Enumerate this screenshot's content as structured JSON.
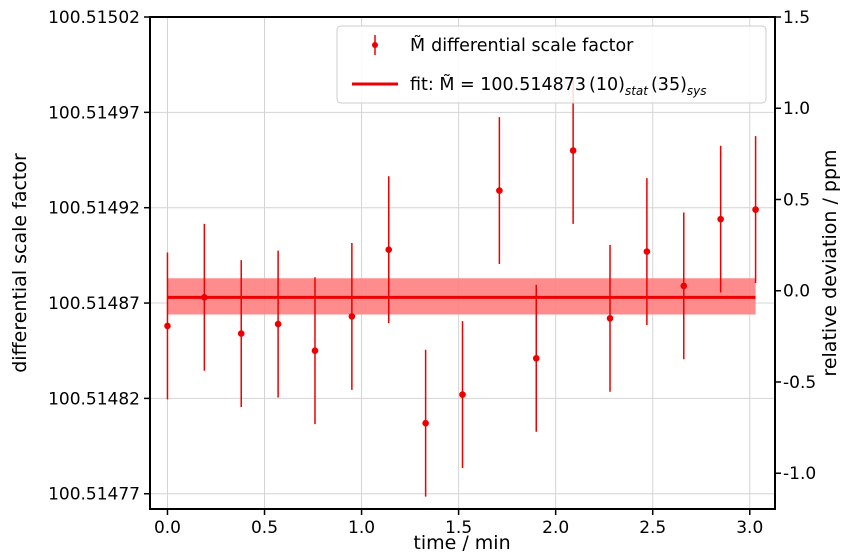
{
  "chart_data": {
    "type": "scatter",
    "xlabel": "time / min",
    "ylabel": "differential scale factor",
    "ylabel_right": "relative deviation / ppm",
    "xlim": [
      -0.09,
      3.13
    ],
    "ylim": [
      100.514762,
      100.51502
    ],
    "ylim_right": [
      -1.196,
      1.5
    ],
    "x_ticks": [
      0.0,
      0.5,
      1.0,
      1.5,
      2.0,
      2.5,
      3.0
    ],
    "x_tick_labels": [
      "0.0",
      "0.5",
      "1.0",
      "1.5",
      "2.0",
      "2.5",
      "3.0"
    ],
    "y_ticks": [
      100.51477,
      100.51482,
      100.51487,
      100.51492,
      100.51497,
      100.51502
    ],
    "y_tick_labels": [
      "100.51477",
      "100.51482",
      "100.51487",
      "100.51492",
      "100.51497",
      "100.51502"
    ],
    "y_right_ticks": [
      -1.0,
      -0.5,
      0.0,
      0.5,
      1.0,
      1.5
    ],
    "y_right_tick_labels": [
      "-1.0",
      "-0.5",
      "0.0",
      "0.5",
      "1.0",
      "1.5"
    ],
    "grid": true,
    "legend_position": "top-right",
    "colors": {
      "points": "#ee0000",
      "fit_line": "#ee0000",
      "band": "#ff8080"
    },
    "series": [
      {
        "name": "differential scale factor",
        "legend_symbol": "M̃",
        "x": [
          0.0,
          0.19,
          0.38,
          0.57,
          0.76,
          0.95,
          1.14,
          1.33,
          1.52,
          1.71,
          1.9,
          2.09,
          2.28,
          2.47,
          2.66,
          2.85,
          3.03
        ],
        "y": [
          100.514858,
          100.514873,
          100.514854,
          100.514859,
          100.514845,
          100.514863,
          100.514898,
          100.514807,
          100.514822,
          100.514929,
          100.514841,
          100.51495,
          100.514862,
          100.514897,
          100.514879,
          100.514914,
          100.514919
        ],
        "yerr": [
          3.85e-05,
          3.85e-05,
          3.85e-05,
          3.85e-05,
          3.85e-05,
          3.85e-05,
          3.85e-05,
          3.85e-05,
          3.85e-05,
          3.85e-05,
          3.85e-05,
          3.85e-05,
          3.85e-05,
          3.85e-05,
          3.85e-05,
          3.85e-05,
          3.85e-05
        ]
      }
    ],
    "fit": {
      "label_prefix": "fit: ",
      "label_symbol": "M̃",
      "label_equals": " = ",
      "value_text": "100.514873",
      "stat_uncertainty": "(10)",
      "stat_label": "stat",
      "sys_uncertainty": "(35)",
      "sys_label": "sys",
      "value": 100.514873,
      "band": [
        100.514864,
        100.514883
      ],
      "x_range": [
        0.0,
        3.03
      ]
    }
  }
}
